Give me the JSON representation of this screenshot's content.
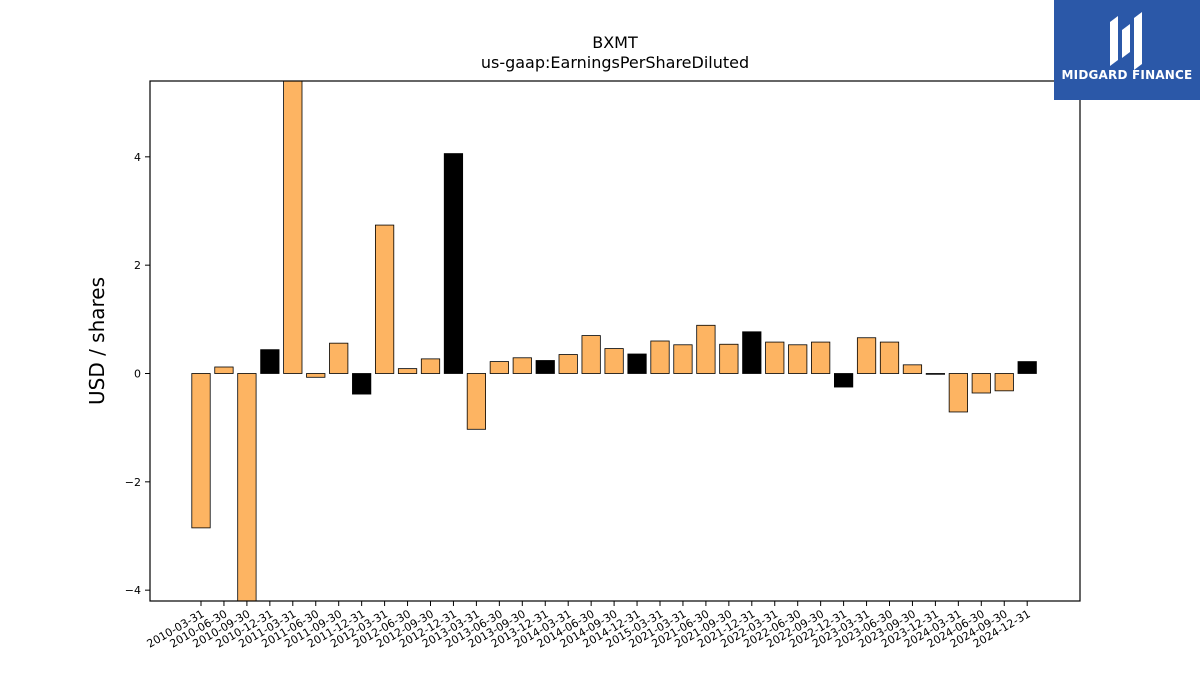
{
  "brand": {
    "name": "MIDGARD FINANCE",
    "color": "#2b58a8"
  },
  "chart_data": {
    "type": "bar",
    "title": "BXMT",
    "subtitle": "us-gaap:EarningsPerShareDiluted",
    "xlabel": "",
    "ylabel": "USD / shares",
    "ylim": [
      -4.2,
      5.4
    ],
    "yticks": [
      -4,
      -2,
      0,
      2,
      4
    ],
    "grid": false,
    "colors": {
      "default": "#fdb462",
      "q4": "#000000"
    },
    "categories": [
      "2010-03-31",
      "2010-06-30",
      "2010-09-30",
      "2010-12-31",
      "2011-03-31",
      "2011-06-30",
      "2011-09-30",
      "2011-12-31",
      "2012-03-31",
      "2012-06-30",
      "2012-09-30",
      "2012-12-31",
      "2013-03-31",
      "2013-06-30",
      "2013-09-30",
      "2013-12-31",
      "2014-03-31",
      "2014-06-30",
      "2014-09-30",
      "2014-12-31",
      "2015-03-31",
      "2021-03-31",
      "2021-06-30",
      "2021-09-30",
      "2021-12-31",
      "2022-03-31",
      "2022-06-30",
      "2022-09-30",
      "2022-12-31",
      "2023-03-31",
      "2023-06-30",
      "2023-09-30",
      "2023-12-31",
      "2024-03-31",
      "2024-06-30",
      "2024-09-30",
      "2024-12-31"
    ],
    "values": [
      -2.85,
      0.12,
      -4.2,
      0.44,
      5.4,
      -0.07,
      0.56,
      -0.38,
      2.74,
      0.09,
      0.27,
      4.06,
      -1.03,
      0.22,
      0.29,
      0.24,
      0.35,
      0.7,
      0.46,
      0.36,
      0.6,
      0.53,
      0.89,
      0.54,
      0.77,
      0.58,
      0.53,
      0.58,
      -0.25,
      0.66,
      0.58,
      0.16,
      -0.01,
      -0.71,
      -0.36,
      -0.32,
      0.22
    ],
    "highlight": [
      false,
      false,
      false,
      true,
      false,
      false,
      false,
      true,
      false,
      false,
      false,
      true,
      false,
      false,
      false,
      true,
      false,
      false,
      false,
      true,
      false,
      false,
      false,
      false,
      true,
      false,
      false,
      false,
      true,
      false,
      false,
      false,
      false,
      false,
      false,
      false,
      true
    ]
  }
}
